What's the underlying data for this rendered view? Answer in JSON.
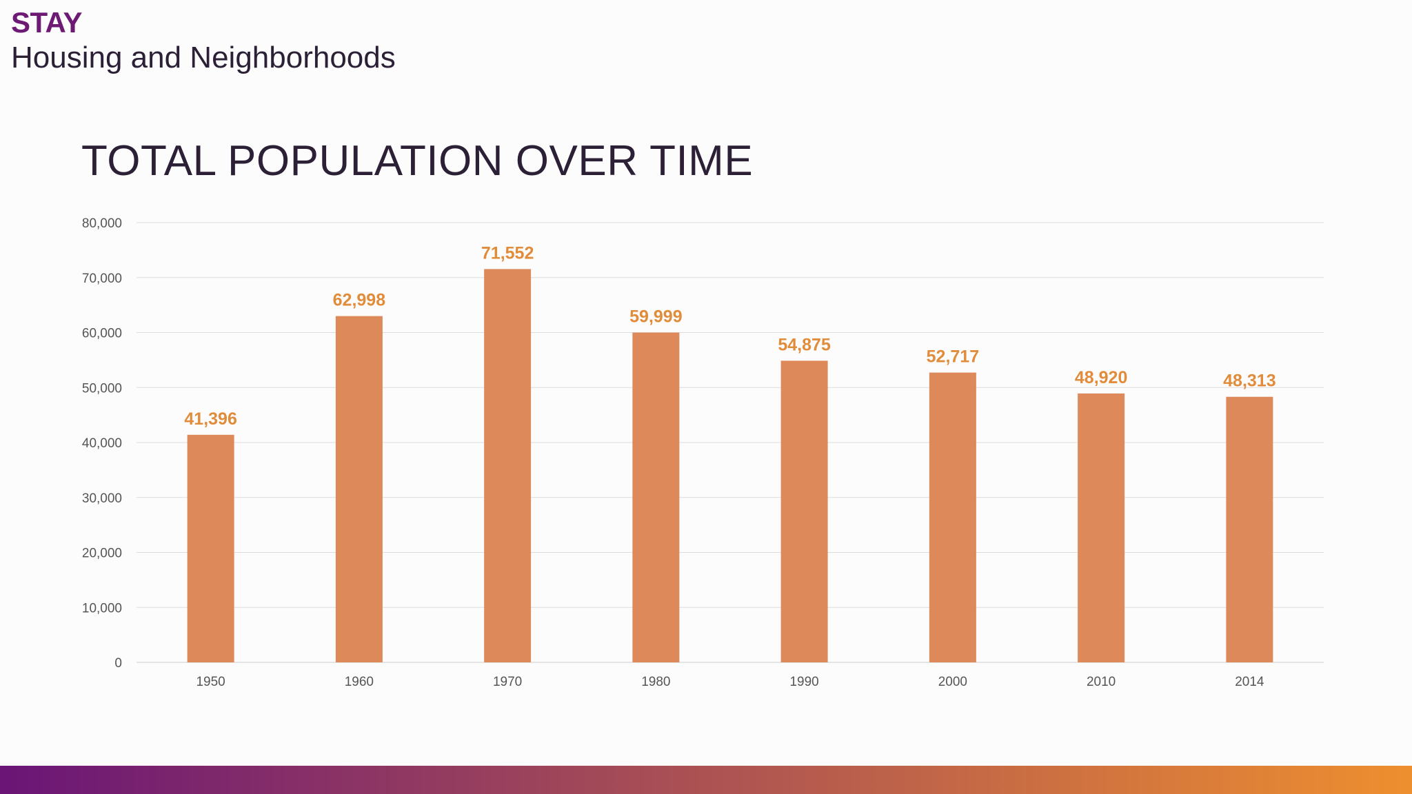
{
  "header": {
    "section": "STAY",
    "subtitle": "Housing and Neighborhoods"
  },
  "colors": {
    "bar": "#de8959",
    "data_label": "#e08c3a",
    "gridline": "#dcdcdc",
    "gradient_start": "#6a1577",
    "gradient_end": "#ee8f2f"
  },
  "chart_data": {
    "type": "bar",
    "title": "TOTAL POPULATION OVER TIME",
    "categories": [
      "1950",
      "1960",
      "1970",
      "1980",
      "1990",
      "2000",
      "2010",
      "2014"
    ],
    "values": [
      41396,
      62998,
      71552,
      59999,
      54875,
      52717,
      48920,
      48313
    ],
    "data_labels": [
      "41,396",
      "62,998",
      "71,552",
      "59,999",
      "54,875",
      "52,717",
      "48,920",
      "48,313"
    ],
    "yticks": [
      0,
      10000,
      20000,
      30000,
      40000,
      50000,
      60000,
      70000,
      80000
    ],
    "ytick_labels": [
      "0",
      "10,000",
      "20,000",
      "30,000",
      "40,000",
      "50,000",
      "60,000",
      "70,000",
      "80,000"
    ],
    "ylim": [
      0,
      80000
    ],
    "xlabel": "",
    "ylabel": "",
    "grid": true,
    "legend": "none"
  }
}
